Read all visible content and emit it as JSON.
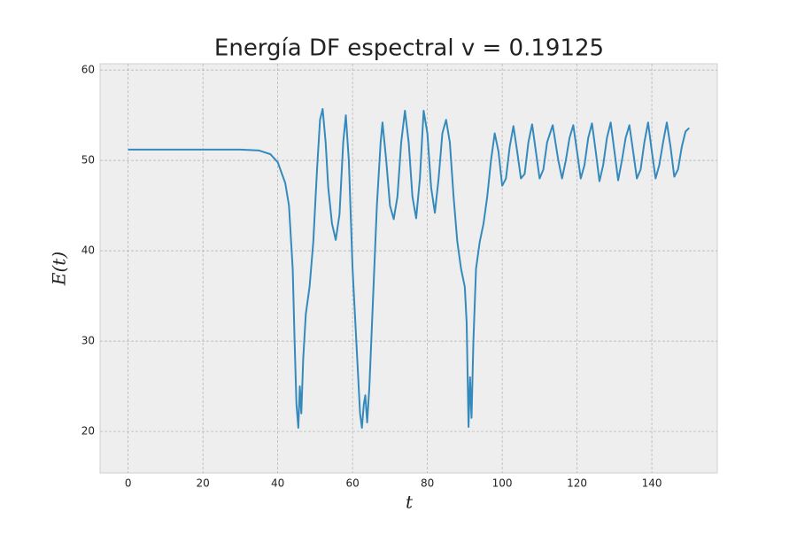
{
  "chart_data": {
    "type": "line",
    "title": "Energía DF espectral v = 0.19125",
    "xlabel": "t",
    "ylabel": "E(t)",
    "x": [
      0,
      5,
      10,
      15,
      20,
      25,
      30,
      35,
      38,
      40,
      42,
      43,
      44,
      44.5,
      45,
      45.5,
      45.9,
      46.3,
      46.8,
      47.5,
      48.5,
      49.5,
      50.5,
      51.3,
      52,
      52.8,
      53.5,
      54.5,
      55.5,
      56.5,
      57.5,
      58.2,
      59,
      60,
      61,
      62,
      62.5,
      63,
      63.4,
      63.9,
      64.5,
      65.5,
      66.5,
      67.5,
      68,
      69,
      70,
      71,
      72,
      73,
      74,
      75,
      76,
      77,
      78,
      79,
      80,
      81,
      82,
      83,
      84,
      85,
      86,
      87,
      88,
      89,
      90,
      90.5,
      91,
      91.4,
      91.8,
      92.3,
      93,
      94,
      95,
      96,
      97,
      98,
      99,
      100,
      101,
      102,
      103,
      104,
      105,
      106,
      107,
      108,
      109,
      110,
      111,
      112,
      113.5,
      115,
      116,
      117,
      118,
      119,
      120,
      121,
      122,
      123,
      124,
      125,
      126,
      127,
      128,
      129,
      130,
      131,
      132,
      133,
      134,
      135,
      136,
      137,
      138,
      139,
      140,
      141,
      142,
      143,
      144,
      145,
      146,
      147,
      148,
      149,
      150
    ],
    "series": [
      {
        "name": "E(t)",
        "color": "#348abd",
        "values": [
          51.2,
          51.2,
          51.2,
          51.2,
          51.2,
          51.2,
          51.2,
          51.1,
          50.7,
          49.8,
          47.5,
          45,
          38,
          30,
          23,
          20.4,
          25,
          22,
          28,
          33,
          36,
          41,
          49,
          54.5,
          55.7,
          52,
          47,
          43,
          41.2,
          44,
          52,
          55,
          50,
          38,
          30,
          22,
          20.4,
          23,
          24,
          21,
          25,
          35,
          45,
          52,
          54.2,
          50,
          45,
          43.5,
          46,
          52,
          55.5,
          52,
          46,
          43.6,
          48,
          55.5,
          53,
          47,
          44.2,
          48,
          53,
          54.5,
          52,
          46,
          41,
          38,
          36,
          32,
          20.5,
          26,
          21.5,
          30,
          38,
          41,
          43,
          46,
          50,
          53,
          51,
          47.2,
          48,
          51.5,
          53.8,
          51,
          48,
          48.5,
          52,
          54,
          51,
          48,
          49,
          52,
          53.9,
          50,
          48,
          50,
          52.5,
          53.9,
          51,
          48,
          49.5,
          52.5,
          54.1,
          51,
          47.7,
          49.5,
          52.5,
          54.2,
          51,
          47.8,
          50,
          52.5,
          53.9,
          51,
          48,
          49,
          52,
          54.2,
          51,
          48,
          49.5,
          52,
          54.2,
          51.5,
          48.2,
          49,
          51.5,
          53.2,
          53.6
        ]
      }
    ],
    "xlim": [
      -7.5,
      157.5
    ],
    "ylim": [
      15.4,
      60.7
    ],
    "xticks": [
      0,
      20,
      40,
      60,
      80,
      100,
      120,
      140
    ],
    "yticks": [
      20,
      30,
      40,
      50,
      60
    ],
    "grid": true
  }
}
